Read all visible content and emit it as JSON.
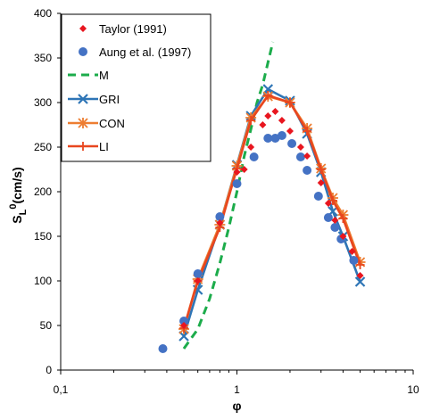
{
  "chart_data": {
    "type": "scatter",
    "title": "",
    "xlabel": "φ",
    "ylabel": {
      "base": "S",
      "sub": "L",
      "sup": "0",
      "unit": "(cm/s)"
    },
    "xscale": "log",
    "xlim": [
      0.1,
      10
    ],
    "ylim": [
      0,
      400
    ],
    "xticks": [
      {
        "v": 0.1,
        "label": "0,1"
      },
      {
        "v": 1,
        "label": "1"
      },
      {
        "v": 10,
        "label": "10"
      }
    ],
    "yticks": [
      0,
      50,
      100,
      150,
      200,
      250,
      300,
      350,
      400
    ],
    "grid": false,
    "legend_position": "top-left",
    "series": [
      {
        "name": "Taylor (1991)",
        "kind": "marker",
        "marker": "diamond",
        "color": "#e8161f",
        "x": [
          0.5,
          0.6,
          0.8,
          1.0,
          1.1,
          1.2,
          1.4,
          1.5,
          1.65,
          1.8,
          2.0,
          2.3,
          2.5,
          3.0,
          3.3,
          3.6,
          4.0,
          4.5,
          5.0
        ],
        "y": [
          50,
          100,
          165,
          222,
          225,
          250,
          275,
          285,
          290,
          280,
          268,
          250,
          240,
          210,
          187,
          168,
          150,
          133,
          106
        ]
      },
      {
        "name": "Aung et al. (1997)",
        "kind": "marker",
        "marker": "circle",
        "color": "#4472c4",
        "x": [
          0.38,
          0.5,
          0.6,
          0.8,
          1.0,
          1.25,
          1.5,
          1.65,
          1.8,
          2.05,
          2.3,
          2.5,
          2.9,
          3.3,
          3.6,
          3.9,
          4.6
        ],
        "y": [
          24,
          55,
          108,
          172,
          209,
          239,
          260,
          260,
          263,
          254,
          239,
          224,
          195,
          171,
          160,
          147,
          123
        ]
      },
      {
        "name": "M",
        "kind": "line",
        "style": "dashed",
        "color": "#1cac4b",
        "x": [
          0.5,
          0.6,
          0.7,
          0.8,
          0.9,
          1.0,
          1.1,
          1.2,
          1.3,
          1.4,
          1.5,
          1.6
        ],
        "y": [
          24,
          46,
          80,
          120,
          160,
          200,
          240,
          270,
          300,
          320,
          345,
          368
        ]
      },
      {
        "name": "GRI",
        "kind": "line-marker",
        "marker": "x",
        "color": "#2e75b6",
        "x": [
          0.5,
          0.6,
          0.8,
          1.0,
          1.2,
          1.5,
          2.0,
          2.5,
          3.0,
          3.5,
          4.0,
          5.0
        ],
        "y": [
          38,
          90,
          163,
          230,
          285,
          315,
          302,
          265,
          222,
          178,
          150,
          99
        ]
      },
      {
        "name": "CON",
        "kind": "line-marker",
        "marker": "asterisk",
        "color": "#ed7d31",
        "x": [
          0.5,
          0.6,
          0.8,
          1.0,
          1.2,
          1.5,
          2.0,
          2.5,
          3.0,
          3.5,
          4.0,
          5.0
        ],
        "y": [
          46,
          102,
          163,
          229,
          283,
          307,
          300,
          271,
          226,
          193,
          174,
          121
        ]
      },
      {
        "name": "LI",
        "kind": "line-marker",
        "marker": "plus",
        "color": "#e8461f",
        "x": [
          0.5,
          0.6,
          0.8,
          1.0,
          1.2,
          1.5,
          2.0,
          2.5,
          3.0,
          3.5,
          4.0,
          5.0
        ],
        "y": [
          47,
          100,
          160,
          226,
          280,
          308,
          300,
          268,
          225,
          190,
          170,
          118
        ]
      }
    ]
  }
}
